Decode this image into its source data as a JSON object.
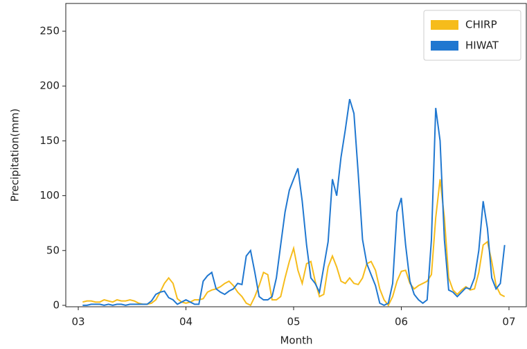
{
  "chart_data": {
    "type": "line",
    "x_label": "Month",
    "y_label": "Precipitation(mm)",
    "x": [
      3.04,
      3.08,
      3.12,
      3.16,
      3.2,
      3.24,
      3.28,
      3.32,
      3.36,
      3.4,
      3.44,
      3.48,
      3.52,
      3.56,
      3.6,
      3.64,
      3.68,
      3.72,
      3.76,
      3.8,
      3.84,
      3.88,
      3.92,
      3.96,
      4.0,
      4.04,
      4.08,
      4.12,
      4.16,
      4.2,
      4.24,
      4.28,
      4.32,
      4.36,
      4.4,
      4.44,
      4.48,
      4.52,
      4.56,
      4.6,
      4.64,
      4.68,
      4.72,
      4.76,
      4.8,
      4.84,
      4.88,
      4.92,
      4.96,
      5.0,
      5.04,
      5.08,
      5.12,
      5.16,
      5.2,
      5.24,
      5.28,
      5.32,
      5.36,
      5.4,
      5.44,
      5.48,
      5.52,
      5.56,
      5.6,
      5.64,
      5.68,
      5.72,
      5.76,
      5.8,
      5.84,
      5.88,
      5.92,
      5.96,
      6.0,
      6.04,
      6.08,
      6.12,
      6.16,
      6.2,
      6.24,
      6.28,
      6.32,
      6.36,
      6.4,
      6.44,
      6.48,
      6.52,
      6.56,
      6.6,
      6.64,
      6.68,
      6.72,
      6.76,
      6.8,
      6.84,
      6.88,
      6.92,
      6.96
    ],
    "series": [
      {
        "name": "CHIRP",
        "color": "#f6bc1b",
        "values": [
          3,
          4,
          4,
          3,
          3,
          5,
          4,
          3,
          5,
          4,
          4,
          5,
          4,
          2,
          1,
          1,
          2,
          5,
          12,
          20,
          25,
          20,
          6,
          3,
          2,
          3,
          5,
          5,
          6,
          12,
          14,
          15,
          17,
          20,
          22,
          18,
          12,
          8,
          2,
          0,
          8,
          18,
          30,
          28,
          5,
          5,
          8,
          25,
          40,
          52,
          32,
          20,
          38,
          40,
          22,
          8,
          10,
          35,
          45,
          35,
          22,
          20,
          25,
          20,
          19,
          25,
          38,
          40,
          32,
          15,
          5,
          0,
          8,
          22,
          31,
          32,
          20,
          15,
          18,
          20,
          22,
          28,
          80,
          115,
          80,
          25,
          14,
          10,
          14,
          17,
          14,
          15,
          30,
          55,
          58,
          40,
          18,
          10,
          8
        ]
      },
      {
        "name": "HIWAT",
        "color": "#1f77d0",
        "values": [
          0,
          0,
          1,
          1,
          1,
          0,
          1,
          0,
          1,
          1,
          0,
          1,
          1,
          1,
          1,
          1,
          4,
          10,
          12,
          13,
          7,
          5,
          1,
          3,
          5,
          3,
          1,
          1,
          22,
          27,
          30,
          15,
          12,
          10,
          13,
          15,
          20,
          19,
          45,
          50,
          30,
          8,
          5,
          5,
          8,
          25,
          55,
          85,
          105,
          115,
          125,
          95,
          55,
          25,
          20,
          12,
          35,
          58,
          115,
          100,
          135,
          160,
          188,
          175,
          120,
          60,
          38,
          28,
          18,
          2,
          0,
          2,
          20,
          85,
          98,
          55,
          22,
          10,
          5,
          2,
          5,
          60,
          180,
          150,
          60,
          14,
          12,
          8,
          12,
          16,
          15,
          25,
          50,
          95,
          70,
          25,
          15,
          20,
          55
        ]
      }
    ],
    "xlim": [
      2.884,
      7.161
    ],
    "ylim": [
      -1.3,
      275.3
    ],
    "xticks": [
      {
        "value": 3,
        "label": "03"
      },
      {
        "value": 4,
        "label": "04"
      },
      {
        "value": 5,
        "label": "05"
      },
      {
        "value": 6,
        "label": "06"
      },
      {
        "value": 7,
        "label": "07"
      }
    ],
    "yticks": [
      0,
      50,
      100,
      150,
      200,
      250
    ],
    "legend": "upper right"
  }
}
